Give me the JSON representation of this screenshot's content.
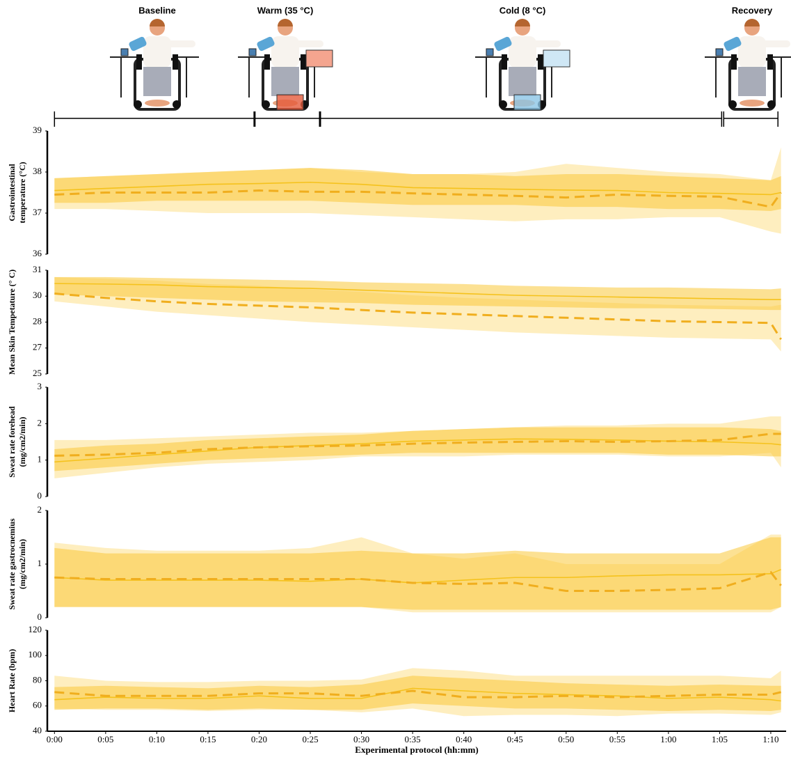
{
  "protocol": {
    "phases": [
      {
        "label": "Baseline",
        "start": 0,
        "end": 19.5
      },
      {
        "label": "Warm (35 °C)",
        "start": 19.6,
        "end": 25.9
      },
      {
        "label": "Cold (8 °C)",
        "start": 26,
        "end": 65.2
      },
      {
        "label": "Recovery",
        "start": 65.4,
        "end": 70.7
      }
    ]
  },
  "chart_data": [
    {
      "type": "line",
      "ylabel": [
        "Gastrointestinal",
        "temperature (°C)"
      ],
      "x": [
        0,
        5,
        10,
        15,
        20,
        25,
        30,
        35,
        40,
        45,
        50,
        55,
        60,
        65,
        70,
        71
      ],
      "xlim": [
        -0.7,
        71.5
      ],
      "ylim": [
        36,
        39
      ],
      "yticks": [
        36,
        37,
        38,
        39
      ],
      "series": [
        {
          "color": "#f5c21c",
          "band_color": "#f9c93a",
          "dashed": false,
          "values": [
            37.55,
            37.6,
            37.65,
            37.7,
            37.72,
            37.75,
            37.7,
            37.62,
            37.6,
            37.58,
            37.56,
            37.55,
            37.5,
            37.48,
            37.45,
            37.5
          ],
          "lower": [
            37.25,
            37.25,
            37.3,
            37.3,
            37.3,
            37.3,
            37.25,
            37.2,
            37.2,
            37.2,
            37.15,
            37.15,
            37.1,
            37.1,
            37.05,
            37.1
          ],
          "upper": [
            37.85,
            37.9,
            37.95,
            38.0,
            38.05,
            38.1,
            38.05,
            37.95,
            37.95,
            37.9,
            37.95,
            37.95,
            37.9,
            37.85,
            37.8,
            37.9
          ]
        },
        {
          "color": "#f0ae1e",
          "band_color": "#fde08a",
          "dashed": true,
          "values": [
            37.45,
            37.5,
            37.5,
            37.5,
            37.55,
            37.52,
            37.52,
            37.48,
            37.45,
            37.42,
            37.38,
            37.45,
            37.42,
            37.4,
            37.15,
            37.5
          ],
          "lower": [
            37.1,
            37.1,
            37.05,
            37.0,
            37.0,
            37.0,
            36.95,
            36.9,
            36.85,
            36.8,
            36.85,
            36.85,
            36.9,
            36.9,
            36.55,
            36.5
          ],
          "upper": [
            37.85,
            37.9,
            37.95,
            38.0,
            38.05,
            38.1,
            38.0,
            37.95,
            37.95,
            38.0,
            38.2,
            38.1,
            38.0,
            37.95,
            37.8,
            38.6
          ]
        }
      ]
    },
    {
      "type": "line",
      "ylabel": [
        "Mean Skin Tempetature (° C)"
      ],
      "x": [
        0,
        5,
        10,
        15,
        20,
        25,
        30,
        35,
        40,
        45,
        50,
        55,
        60,
        65,
        70,
        71
      ],
      "xlim": [
        -0.7,
        71.5
      ],
      "ylim": [
        25,
        31
      ],
      "yticks": [
        25,
        {
          "value": 26.5,
          "label": "27"
        },
        28,
        {
          "value": 29.5,
          "label": "30"
        },
        31
      ],
      "series": [
        {
          "color": "#f5c21c",
          "band_color": "#f9c93a",
          "dashed": false,
          "values": [
            30.23,
            30.2,
            30.15,
            30.05,
            30.0,
            29.95,
            29.85,
            29.75,
            29.65,
            29.55,
            29.5,
            29.45,
            29.4,
            29.35,
            29.3,
            29.3
          ],
          "lower": [
            29.6,
            29.5,
            29.4,
            29.3,
            29.2,
            29.15,
            29.1,
            29.0,
            28.95,
            28.9,
            28.85,
            28.8,
            28.8,
            28.75,
            28.7,
            28.7
          ],
          "upper": [
            30.6,
            30.6,
            30.55,
            30.5,
            30.45,
            30.4,
            30.3,
            30.25,
            30.2,
            30.1,
            30.05,
            30.0,
            30.0,
            29.95,
            29.9,
            29.95
          ]
        },
        {
          "color": "#f0ae1e",
          "band_color": "#fde08a",
          "dashed": true,
          "values": [
            29.65,
            29.4,
            29.2,
            29.05,
            28.95,
            28.85,
            28.7,
            28.55,
            28.45,
            28.35,
            28.25,
            28.15,
            28.05,
            28.0,
            27.95,
            27.0
          ],
          "lower": [
            29.2,
            28.9,
            28.6,
            28.4,
            28.2,
            28.0,
            27.85,
            27.7,
            27.55,
            27.4,
            27.3,
            27.2,
            27.1,
            27.05,
            27.0,
            26.3
          ],
          "upper": [
            30.6,
            30.5,
            30.4,
            30.2,
            30.1,
            29.9,
            29.75,
            29.55,
            29.4,
            29.3,
            29.2,
            29.1,
            29.0,
            28.95,
            28.9,
            29.0
          ]
        }
      ]
    },
    {
      "type": "line",
      "ylabel": [
        "Sweat rate forehead",
        "(mg/cm2/min)"
      ],
      "x": [
        0,
        5,
        10,
        15,
        20,
        25,
        30,
        35,
        40,
        45,
        50,
        55,
        60,
        65,
        70,
        71
      ],
      "xlim": [
        -0.7,
        71.5
      ],
      "ylim": [
        0,
        3
      ],
      "yticks": [
        0,
        1,
        2,
        3
      ],
      "series": [
        {
          "color": "#f5c21c",
          "band_color": "#f9c93a",
          "dashed": false,
          "values": [
            0.95,
            1.05,
            1.15,
            1.25,
            1.35,
            1.4,
            1.45,
            1.52,
            1.55,
            1.58,
            1.57,
            1.55,
            1.52,
            1.5,
            1.45,
            1.42
          ],
          "lower": [
            0.7,
            0.8,
            0.9,
            1.0,
            1.05,
            1.1,
            1.15,
            1.2,
            1.2,
            1.2,
            1.2,
            1.2,
            1.15,
            1.15,
            1.1,
            1.1
          ],
          "upper": [
            1.3,
            1.4,
            1.45,
            1.55,
            1.6,
            1.65,
            1.7,
            1.8,
            1.85,
            1.9,
            1.9,
            1.9,
            1.9,
            1.9,
            1.85,
            1.8
          ]
        },
        {
          "color": "#f0ae1e",
          "band_color": "#fde08a",
          "dashed": true,
          "values": [
            1.12,
            1.15,
            1.2,
            1.3,
            1.35,
            1.38,
            1.4,
            1.45,
            1.48,
            1.5,
            1.52,
            1.5,
            1.52,
            1.55,
            1.72,
            1.72
          ],
          "lower": [
            0.5,
            0.65,
            0.8,
            0.9,
            0.95,
            1.0,
            1.1,
            1.1,
            1.1,
            1.15,
            1.15,
            1.15,
            1.1,
            1.1,
            1.2,
            0.8
          ],
          "upper": [
            1.55,
            1.55,
            1.6,
            1.65,
            1.7,
            1.75,
            1.75,
            1.8,
            1.85,
            1.9,
            1.95,
            1.95,
            2.0,
            2.0,
            2.2,
            2.2
          ]
        }
      ]
    },
    {
      "type": "line",
      "ylabel": [
        "Sweat rate gastrocnemius",
        "(mg/cm2/min)"
      ],
      "x": [
        0,
        5,
        10,
        15,
        20,
        25,
        30,
        35,
        40,
        45,
        50,
        55,
        60,
        65,
        70,
        71
      ],
      "xlim": [
        -0.7,
        71.5
      ],
      "ylim": [
        0,
        2
      ],
      "yticks": [
        0,
        1,
        2
      ],
      "series": [
        {
          "color": "#f5c21c",
          "band_color": "#f9c93a",
          "dashed": false,
          "values": [
            0.75,
            0.7,
            0.7,
            0.7,
            0.7,
            0.68,
            0.72,
            0.65,
            0.7,
            0.75,
            0.75,
            0.78,
            0.8,
            0.8,
            0.82,
            0.9
          ],
          "lower": [
            0.2,
            0.2,
            0.2,
            0.2,
            0.2,
            0.2,
            0.2,
            0.15,
            0.15,
            0.15,
            0.15,
            0.15,
            0.15,
            0.15,
            0.15,
            0.2
          ],
          "upper": [
            1.3,
            1.2,
            1.2,
            1.2,
            1.2,
            1.2,
            1.25,
            1.2,
            1.2,
            1.25,
            1.2,
            1.2,
            1.2,
            1.2,
            1.5,
            1.5
          ]
        },
        {
          "color": "#f0ae1e",
          "band_color": "#fde08a",
          "dashed": true,
          "values": [
            0.75,
            0.72,
            0.72,
            0.72,
            0.72,
            0.72,
            0.72,
            0.65,
            0.63,
            0.65,
            0.5,
            0.5,
            0.52,
            0.55,
            0.85,
            0.6
          ],
          "lower": [
            0.2,
            0.2,
            0.2,
            0.2,
            0.2,
            0.2,
            0.2,
            0.1,
            0.1,
            0.1,
            0.1,
            0.1,
            0.1,
            0.1,
            0.1,
            0.2
          ],
          "upper": [
            1.4,
            1.3,
            1.25,
            1.25,
            1.25,
            1.3,
            1.5,
            1.2,
            1.1,
            1.2,
            1.0,
            1.0,
            1.0,
            1.0,
            1.55,
            1.55
          ]
        }
      ]
    },
    {
      "type": "line",
      "ylabel": [
        "Heart Rate (bpm)"
      ],
      "xlabel": "Experimental protocol (hh:mm)",
      "x": [
        0,
        5,
        10,
        15,
        20,
        25,
        30,
        35,
        40,
        45,
        50,
        55,
        60,
        65,
        70,
        71
      ],
      "xlim": [
        -0.7,
        71.5
      ],
      "xticks": [
        {
          "value": 0,
          "label": "0:00"
        },
        {
          "value": 5,
          "label": "0:05"
        },
        {
          "value": 10,
          "label": "0:10"
        },
        {
          "value": 15,
          "label": "0:15"
        },
        {
          "value": 20,
          "label": "0:20"
        },
        {
          "value": 25,
          "label": "0:25"
        },
        {
          "value": 30,
          "label": "0:30"
        },
        {
          "value": 35,
          "label": "0:35"
        },
        {
          "value": 40,
          "label": "0:40"
        },
        {
          "value": 45,
          "label": "0:45"
        },
        {
          "value": 50,
          "label": "0:50"
        },
        {
          "value": 55,
          "label": "0:55"
        },
        {
          "value": 60,
          "label": "1:00"
        },
        {
          "value": 65,
          "label": "1:05"
        },
        {
          "value": 70,
          "label": "1:10"
        }
      ],
      "ylim": [
        40,
        120
      ],
      "yticks": [
        40,
        60,
        80,
        100,
        120
      ],
      "series": [
        {
          "color": "#f5c21c",
          "band_color": "#f9c93a",
          "dashed": false,
          "values": [
            65,
            67,
            66,
            66,
            68,
            66,
            66,
            74,
            72,
            70,
            69,
            68,
            66,
            67,
            65,
            64
          ],
          "lower": [
            57,
            58,
            58,
            57,
            58,
            57,
            57,
            62,
            60,
            58,
            58,
            57,
            56,
            57,
            56,
            57
          ],
          "upper": [
            75,
            76,
            75,
            74,
            76,
            75,
            77,
            84,
            82,
            80,
            78,
            77,
            76,
            77,
            76,
            76
          ]
        },
        {
          "color": "#f0ae1e",
          "band_color": "#fde08a",
          "dashed": true,
          "values": [
            71,
            68,
            68,
            68,
            70,
            70,
            68,
            72,
            67,
            67,
            68,
            67,
            68,
            69,
            69,
            71
          ],
          "lower": [
            58,
            57,
            57,
            56,
            57,
            57,
            55,
            58,
            52,
            53,
            53,
            52,
            54,
            54,
            53,
            55
          ],
          "upper": [
            84,
            80,
            79,
            79,
            80,
            80,
            81,
            90,
            88,
            84,
            84,
            84,
            84,
            84,
            82,
            88
          ]
        }
      ]
    }
  ]
}
